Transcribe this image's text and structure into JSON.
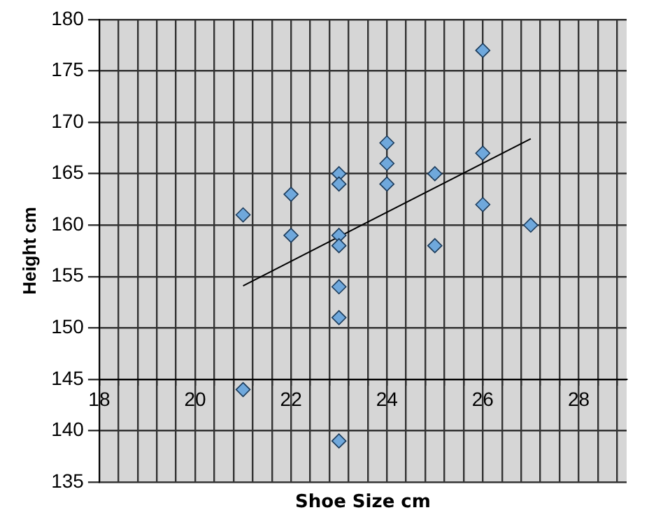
{
  "chart_data": {
    "type": "scatter",
    "xlabel": "Shoe Size cm",
    "ylabel": "Height cm",
    "xlim": [
      18,
      29
    ],
    "ylim": [
      135,
      180
    ],
    "xticks": [
      18,
      {
        "value": 18.4,
        "label": null
      },
      {
        "value": 18.8,
        "label": null
      },
      {
        "value": 19.2,
        "label": null
      },
      {
        "value": 19.6,
        "label": null
      },
      20,
      {
        "value": 20.4,
        "label": null
      },
      {
        "value": 20.8,
        "label": null
      },
      {
        "value": 21.2,
        "label": null
      },
      {
        "value": 21.6,
        "label": null
      },
      22,
      {
        "value": 22.4,
        "label": null
      },
      {
        "value": 22.8,
        "label": null
      },
      {
        "value": 23.2,
        "label": null
      },
      {
        "value": 23.6,
        "label": null
      },
      24,
      {
        "value": 24.4,
        "label": null
      },
      {
        "value": 24.8,
        "label": null
      },
      {
        "value": 25.2,
        "label": null
      },
      {
        "value": 25.6,
        "label": null
      },
      26,
      {
        "value": 26.4,
        "label": null
      },
      {
        "value": 26.8,
        "label": null
      },
      {
        "value": 27.2,
        "label": null
      },
      {
        "value": 27.6,
        "label": null
      },
      28,
      {
        "value": 28.4,
        "label": null
      },
      {
        "value": 28.8,
        "label": null
      }
    ],
    "yticks": [
      135,
      140,
      145,
      150,
      155,
      160,
      165,
      170,
      175,
      180
    ],
    "grid": true,
    "legend": false,
    "marker": "diamond",
    "series": [
      {
        "color": "#6fa8dc",
        "x": [
          21,
          21,
          22,
          22,
          23,
          23,
          23,
          23,
          23,
          23,
          23,
          24,
          24,
          24,
          25,
          25,
          26,
          26,
          26,
          27
        ],
        "values": [
          161,
          144,
          163,
          159,
          165,
          164,
          159,
          158,
          154,
          151,
          139,
          168,
          166,
          164,
          165,
          158,
          177,
          167,
          162,
          160
        ]
      },
      {
        "type": "line",
        "color": "#000000",
        "marker": "none",
        "x": [
          21,
          27
        ],
        "values": [
          154.1,
          168.4
        ]
      }
    ]
  }
}
